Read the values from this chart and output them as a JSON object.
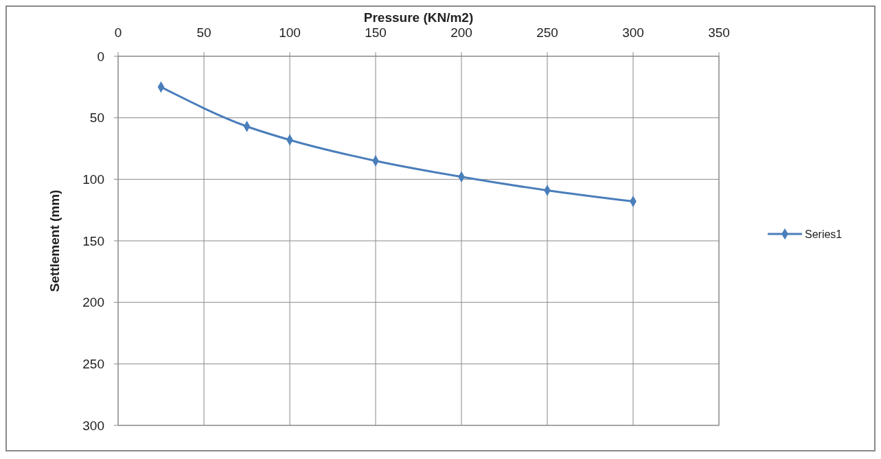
{
  "chart_data": {
    "type": "line",
    "xlabel": "Pressure (KN/m2)",
    "ylabel": "Settlement (mm)",
    "x": [
      25,
      75,
      100,
      150,
      200,
      250,
      300
    ],
    "series": [
      {
        "name": "Series1",
        "color": "#4a7ebb",
        "values": [
          25,
          57,
          68,
          85,
          98,
          109,
          118
        ]
      }
    ],
    "xlim": [
      0,
      350
    ],
    "xticks": [
      0,
      50,
      100,
      150,
      200,
      250,
      300,
      350
    ],
    "ylim": [
      300,
      0
    ],
    "yticks": [
      0,
      50,
      100,
      150,
      200,
      250,
      300
    ],
    "grid": true,
    "legend": "right",
    "marker": "diamond",
    "line_style": "solid"
  }
}
